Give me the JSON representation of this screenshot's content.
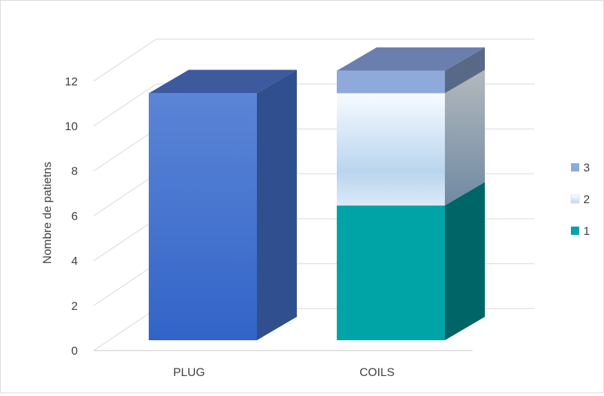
{
  "chart_data": {
    "type": "bar",
    "stacked": true,
    "three_d": true,
    "categories": [
      "PLUG",
      "COILS"
    ],
    "series": [
      {
        "name": "1",
        "values": [
          11,
          6
        ],
        "color": "#00a3a6"
      },
      {
        "name": "2",
        "values": [
          0,
          5
        ],
        "color": "#dce9f5"
      },
      {
        "name": "3",
        "values": [
          0,
          1
        ],
        "color": "#8eaadb"
      }
    ],
    "bar_override_colors": {
      "PLUG": "#4472c4"
    },
    "ylabel": "Nombre de patietns",
    "ylim": [
      0,
      12
    ],
    "yticks": [
      "0",
      "2",
      "4",
      "6",
      "8",
      "10",
      "12"
    ],
    "grid": true,
    "legend_position": "right"
  }
}
